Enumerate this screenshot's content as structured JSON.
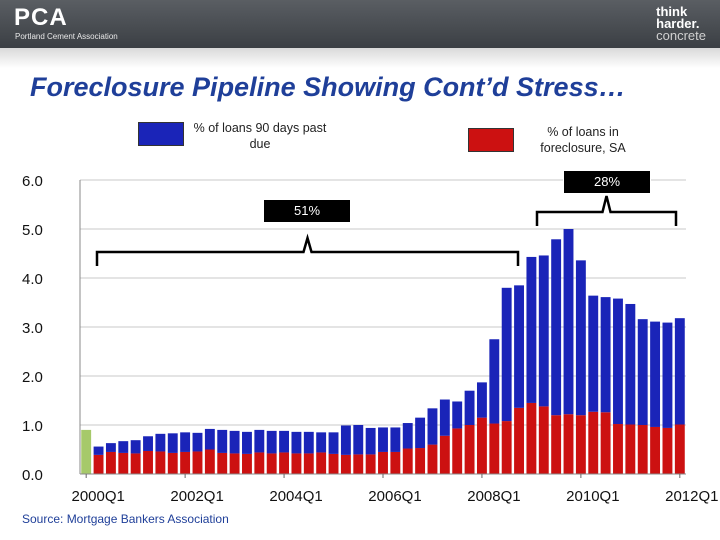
{
  "header": {
    "logo_text": "PCA",
    "logo_subtitle": "Portland Cement Association",
    "tagline_1": "think",
    "tagline_2": "harder.",
    "tagline_3": "concrete"
  },
  "slide_title": "Foreclosure Pipeline Showing Cont’d Stress…",
  "source": "Source:  Mortgage Bankers Association",
  "colors": {
    "delinquent": "#1a24b8",
    "foreclosure": "#cc1111",
    "title": "#1f3f99",
    "highlight": "#a6c96a"
  },
  "chart_data": {
    "type": "bar",
    "stacked": true,
    "legend": [
      {
        "label": "% of loans 90 days past due",
        "color": "#1a24b8"
      },
      {
        "label": "% of loans in foreclosure, SA",
        "color": "#cc1111"
      }
    ],
    "ylim": [
      0,
      6
    ],
    "yticks": [
      "0.0",
      "1.0",
      "2.0",
      "3.0",
      "4.0",
      "5.0",
      "6.0"
    ],
    "xtick_labels": [
      "2000Q1",
      "2002Q1",
      "2004Q1",
      "2006Q1",
      "2008Q1",
      "2010Q1",
      "2012Q1"
    ],
    "annotations": [
      "51%",
      "28%"
    ],
    "series": [
      {
        "name": "% of loans in foreclosure, SA",
        "values": [
          0.9,
          0.39,
          0.45,
          0.43,
          0.42,
          0.47,
          0.46,
          0.43,
          0.45,
          0.46,
          0.5,
          0.43,
          0.42,
          0.41,
          0.44,
          0.42,
          0.44,
          0.42,
          0.42,
          0.44,
          0.41,
          0.39,
          0.4,
          0.4,
          0.45,
          0.45,
          0.52,
          0.53,
          0.6,
          0.78,
          0.93,
          1.0,
          1.15,
          1.03,
          1.08,
          1.35,
          1.45,
          1.38,
          1.2,
          1.22,
          1.2,
          1.27,
          1.26,
          1.02,
          1.01,
          1.0,
          0.96,
          0.94,
          1.01
        ]
      },
      {
        "name": "% of loans 90 days past due",
        "values": [
          0.0,
          0.17,
          0.18,
          0.24,
          0.27,
          0.3,
          0.36,
          0.4,
          0.4,
          0.38,
          0.42,
          0.47,
          0.46,
          0.45,
          0.46,
          0.46,
          0.44,
          0.44,
          0.44,
          0.41,
          0.44,
          0.6,
          0.6,
          0.54,
          0.5,
          0.5,
          0.52,
          0.62,
          0.74,
          0.74,
          0.55,
          0.7,
          0.72,
          1.72,
          2.72,
          2.5,
          2.98,
          3.08,
          3.59,
          3.78,
          3.16,
          2.37,
          2.35,
          2.56,
          2.46,
          2.16,
          2.15,
          2.15,
          2.17
        ]
      }
    ]
  }
}
